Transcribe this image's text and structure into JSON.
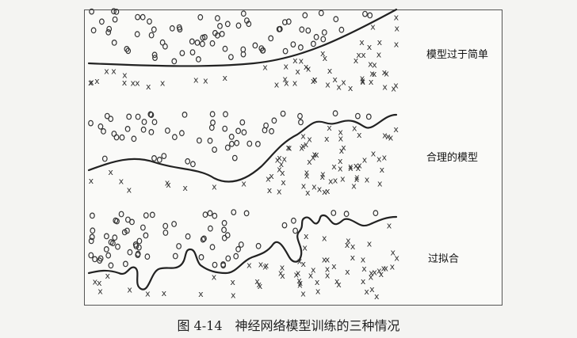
{
  "panels": [
    {
      "label": "模型过于简单"
    },
    {
      "label": "合理的模型"
    },
    {
      "label": "过拟合"
    }
  ],
  "caption": "图 4-14　神经网络模型训练的三种情况",
  "markers": {
    "class_a": "o",
    "class_b": "x"
  }
}
